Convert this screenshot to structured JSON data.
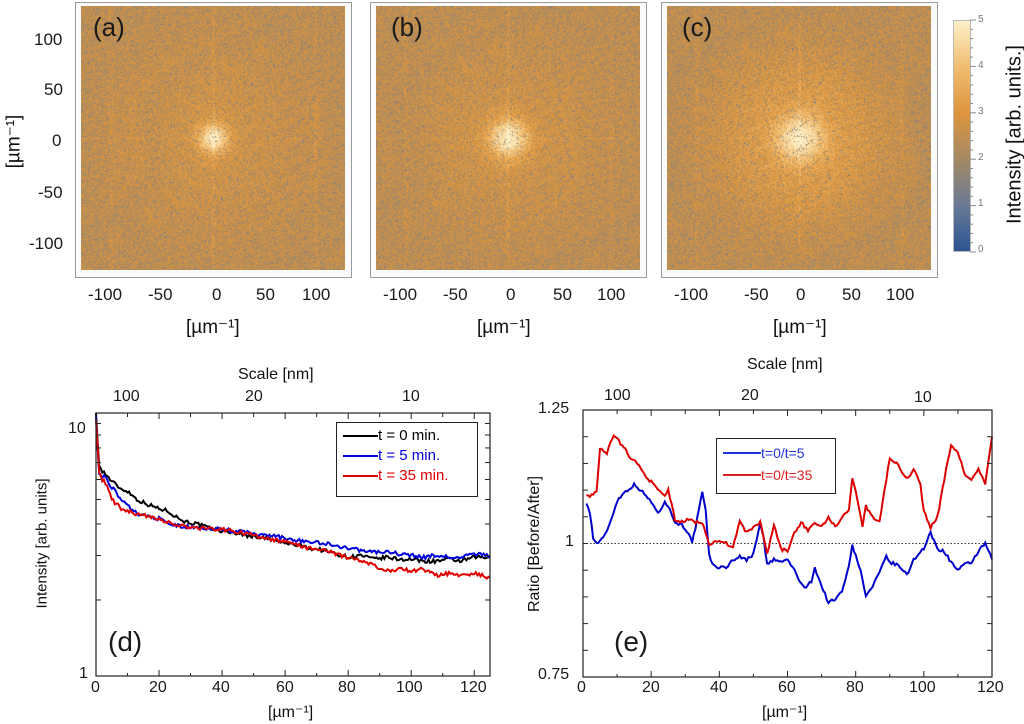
{
  "figure": {
    "heatmaps": {
      "panels": [
        {
          "label": "(a)",
          "description": "2D FFT intensity, t = 0 min",
          "center_spread": 0.22
        },
        {
          "label": "(b)",
          "description": "2D FFT intensity, t = 5 min",
          "center_spread": 0.3
        },
        {
          "label": "(c)",
          "description": "2D FFT intensity, t = 35 min",
          "center_spread": 0.38
        }
      ],
      "x_ticks": [
        "-100",
        "-50",
        "0",
        "50",
        "100"
      ],
      "y_ticks": [
        "100",
        "50",
        "0",
        "-50",
        "-100"
      ],
      "x_unit": "[µm⁻¹]",
      "y_unit": "[µm⁻¹]",
      "colorbar": {
        "label": "Intensity [arb. units.]",
        "ticks": [
          "5",
          "4",
          "3",
          "2",
          "1",
          "0"
        ],
        "min": 0,
        "max": 5,
        "colors": [
          "#2b5592",
          "#6a7a96",
          "#a48964",
          "#de953d",
          "#f0bd72",
          "#fdf0c8"
        ]
      }
    }
  },
  "chart_data": [
    {
      "type": "heatmap",
      "title": "(a)",
      "xlabel": "[µm⁻¹]",
      "ylabel": "[µm⁻¹]",
      "xlim": [
        -125,
        125
      ],
      "ylim": [
        -125,
        125
      ],
      "x_ticks": [
        -100,
        -50,
        0,
        50,
        100
      ],
      "y_ticks": [
        -100,
        -50,
        0,
        50,
        100
      ],
      "colorbar": {
        "label": "Intensity [arb. units.]",
        "range": [
          0,
          5
        ]
      }
    },
    {
      "type": "heatmap",
      "title": "(b)",
      "xlabel": "[µm⁻¹]",
      "xlim": [
        -125,
        125
      ],
      "ylim": [
        -125,
        125
      ],
      "x_ticks": [
        -100,
        -50,
        0,
        50,
        100
      ]
    },
    {
      "type": "heatmap",
      "title": "(c)",
      "xlabel": "[µm⁻¹]",
      "xlim": [
        -125,
        125
      ],
      "ylim": [
        -125,
        125
      ],
      "x_ticks": [
        -100,
        -50,
        0,
        50,
        100
      ]
    },
    {
      "type": "line",
      "panel_label": "(d)",
      "xlabel": "[µm⁻¹]",
      "ylabel": "Intensity [arb. units]",
      "top_axis_label": "Scale [nm]",
      "top_ticks": [
        {
          "label": "100",
          "x": 5
        },
        {
          "label": "20",
          "x": 26
        },
        {
          "label": "10",
          "x": 101
        }
      ],
      "xlim": [
        0,
        125
      ],
      "ylim": [
        1,
        11
      ],
      "yscale": "log",
      "x_ticks": [
        0,
        20,
        40,
        60,
        80,
        100,
        120
      ],
      "y_tick_labels": [
        {
          "label": "10",
          "value": 10
        },
        {
          "label": "1",
          "value": 1
        }
      ],
      "legend_position": "top-right",
      "series": [
        {
          "name": "t = 0 min.",
          "color": "#000000",
          "x": [
            0,
            0.5,
            1,
            2,
            3,
            5,
            8,
            10,
            13,
            16,
            20,
            23,
            25,
            28,
            32,
            36,
            40,
            44,
            48,
            52,
            56,
            60,
            64,
            68,
            72,
            76,
            80,
            84,
            88,
            92,
            96,
            100,
            104,
            108,
            112,
            116,
            120,
            125
          ],
          "y": [
            11,
            8.5,
            6.8,
            6.5,
            6.3,
            5.9,
            5.5,
            5.4,
            5.0,
            4.8,
            4.6,
            4.5,
            4.3,
            4.1,
            4.0,
            3.85,
            3.75,
            3.7,
            3.6,
            3.55,
            3.45,
            3.35,
            3.3,
            3.2,
            3.15,
            3.05,
            2.95,
            3.0,
            2.9,
            2.95,
            2.9,
            2.9,
            2.85,
            2.85,
            2.9,
            2.85,
            2.95,
            2.95
          ]
        },
        {
          "name": "t = 5 min.",
          "color": "#0000dd",
          "x": [
            0,
            0.5,
            1,
            2,
            3,
            5,
            8,
            10,
            13,
            16,
            20,
            23,
            25,
            28,
            32,
            36,
            40,
            44,
            48,
            52,
            56,
            60,
            64,
            68,
            72,
            76,
            80,
            84,
            88,
            92,
            96,
            100,
            104,
            108,
            112,
            116,
            120,
            125
          ],
          "y": [
            10.8,
            8.0,
            6.3,
            6.2,
            6.1,
            5.6,
            5.0,
            4.7,
            4.4,
            4.3,
            4.2,
            4.0,
            3.95,
            3.9,
            3.85,
            3.85,
            3.8,
            3.75,
            3.7,
            3.6,
            3.6,
            3.5,
            3.45,
            3.4,
            3.35,
            3.3,
            3.2,
            3.15,
            3.1,
            3.1,
            3.05,
            3.0,
            2.95,
            3.0,
            2.95,
            2.95,
            3.05,
            3.0
          ]
        },
        {
          "name": "t = 35 min.",
          "color": "#e00000",
          "x": [
            0,
            0.5,
            1,
            2,
            3,
            5,
            8,
            10,
            13,
            16,
            20,
            23,
            25,
            28,
            32,
            36,
            40,
            44,
            48,
            52,
            56,
            60,
            64,
            68,
            72,
            76,
            80,
            84,
            88,
            92,
            96,
            100,
            104,
            108,
            112,
            116,
            120,
            125
          ],
          "y": [
            10.3,
            8.2,
            6.4,
            6.0,
            5.8,
            5.0,
            4.6,
            4.5,
            4.35,
            4.3,
            4.2,
            4.05,
            3.95,
            3.9,
            3.85,
            3.85,
            3.8,
            3.75,
            3.65,
            3.55,
            3.45,
            3.4,
            3.3,
            3.2,
            3.15,
            3.05,
            2.95,
            2.85,
            2.75,
            2.6,
            2.65,
            2.6,
            2.65,
            2.5,
            2.55,
            2.5,
            2.55,
            2.45
          ]
        }
      ]
    },
    {
      "type": "line",
      "panel_label": "(e)",
      "xlabel": "[µm⁻¹]",
      "ylabel": "Ratio [Before/After]",
      "top_axis_label": "Scale [nm]",
      "top_ticks": [
        {
          "label": "100",
          "x": 10
        },
        {
          "label": "20",
          "x": 50
        },
        {
          "label": "10",
          "x": 100
        }
      ],
      "xlim": [
        0,
        120
      ],
      "ylim": [
        0.75,
        1.25
      ],
      "x_ticks": [
        0,
        20,
        40,
        60,
        80,
        100,
        120
      ],
      "y_tick_labels": [
        {
          "label": "1.25",
          "value": 1.25
        },
        {
          "label": "1",
          "value": 1.0
        },
        {
          "label": "0.75",
          "value": 0.75
        }
      ],
      "reference_line": {
        "y": 1.0,
        "style": "dotted"
      },
      "legend_position": "top-center",
      "series": [
        {
          "name": "t=0/t=5",
          "color": "#0000cc",
          "x": [
            1,
            2,
            3,
            4,
            5,
            6,
            8,
            10,
            12,
            14,
            15,
            17,
            19,
            21,
            22,
            24,
            25,
            27,
            29,
            31,
            32,
            33,
            35,
            36,
            37,
            38,
            40,
            42,
            44,
            46,
            48,
            50,
            52,
            53,
            54,
            56,
            58,
            60,
            62,
            64,
            65,
            67,
            68,
            70,
            72,
            74,
            76,
            78,
            79,
            80,
            82,
            83,
            85,
            87,
            89,
            90,
            92,
            94,
            95,
            97,
            99,
            100,
            102,
            104,
            106,
            108,
            110,
            112,
            114,
            116,
            118,
            120
          ],
          "y": [
            1.075,
            1.06,
            1.01,
            1.0,
            1.005,
            1.01,
            1.04,
            1.08,
            1.095,
            1.105,
            1.11,
            1.1,
            1.085,
            1.07,
            1.055,
            1.08,
            1.07,
            1.04,
            1.035,
            1.02,
            1.0,
            1.03,
            1.095,
            1.06,
            0.98,
            0.96,
            0.955,
            0.955,
            0.97,
            0.975,
            0.97,
            0.98,
            1.04,
            1.01,
            0.96,
            0.97,
            0.965,
            0.97,
            0.95,
            0.925,
            0.915,
            0.93,
            0.955,
            0.92,
            0.89,
            0.895,
            0.91,
            0.96,
            0.995,
            0.98,
            0.935,
            0.9,
            0.92,
            0.945,
            0.975,
            0.965,
            0.96,
            0.95,
            0.94,
            0.97,
            0.985,
            0.99,
            1.02,
            0.99,
            0.985,
            0.965,
            0.95,
            0.96,
            0.965,
            0.985,
            1.0,
            0.97
          ]
        },
        {
          "name": "t=0/t=35",
          "color": "#dd0000",
          "x": [
            1,
            2,
            3,
            4,
            5,
            6,
            7,
            8,
            9,
            10,
            12,
            14,
            16,
            18,
            20,
            22,
            24,
            25,
            27,
            29,
            31,
            33,
            35,
            36,
            37,
            38,
            40,
            42,
            44,
            46,
            48,
            50,
            52,
            54,
            56,
            58,
            60,
            62,
            64,
            66,
            68,
            70,
            72,
            74,
            76,
            78,
            79,
            80,
            82,
            83,
            85,
            87,
            89,
            90,
            92,
            94,
            95,
            97,
            99,
            100,
            102,
            104,
            106,
            108,
            110,
            112,
            114,
            116,
            118,
            120
          ],
          "y": [
            1.09,
            1.09,
            1.09,
            1.1,
            1.18,
            1.17,
            1.17,
            1.19,
            1.2,
            1.195,
            1.18,
            1.16,
            1.15,
            1.13,
            1.115,
            1.1,
            1.09,
            1.1,
            1.045,
            1.04,
            1.045,
            1.04,
            1.04,
            1.02,
            1.0,
            1.0,
            1.005,
            1.0,
            0.995,
            1.04,
            1.02,
            1.03,
            1.04,
            0.98,
            1.035,
            0.99,
            0.985,
            1.02,
            1.04,
            1.025,
            1.04,
            1.03,
            1.05,
            1.03,
            1.05,
            1.065,
            1.12,
            1.1,
            1.03,
            1.07,
            1.05,
            1.04,
            1.12,
            1.16,
            1.15,
            1.13,
            1.12,
            1.14,
            1.11,
            1.06,
            1.03,
            1.05,
            1.12,
            1.185,
            1.17,
            1.13,
            1.12,
            1.14,
            1.11,
            1.2
          ]
        }
      ]
    }
  ],
  "panel_d": {
    "label": "(d)",
    "top_title": "Scale [nm]",
    "top_ticks": [
      "100",
      "20",
      "10"
    ],
    "x_ticks": [
      "0",
      "20",
      "40",
      "60",
      "80",
      "100",
      "120"
    ],
    "y_ticks": [
      "10",
      "1"
    ],
    "xlabel": "[µm⁻¹]",
    "ylabel": "Intensity [arb. units]",
    "legend": [
      "t = 0 min.",
      "t = 5 min.",
      "t = 35 min."
    ]
  },
  "panel_e": {
    "label": "(e)",
    "top_title": "Scale [nm]",
    "top_ticks": [
      "100",
      "20",
      "10"
    ],
    "x_ticks": [
      "0",
      "20",
      "40",
      "60",
      "80",
      "100",
      "120"
    ],
    "y_ticks": [
      "1.25",
      "1",
      "0.75"
    ],
    "xlabel": "[µm⁻¹]",
    "ylabel": "Ratio [Before/After]",
    "legend": [
      "t=0/t=5",
      "t=0/t=35"
    ]
  }
}
